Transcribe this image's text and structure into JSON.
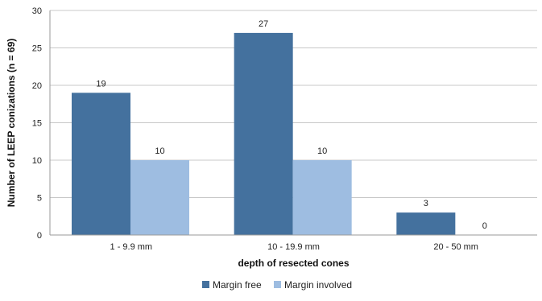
{
  "chart_data": {
    "type": "bar",
    "categories": [
      "1 - 9.9 mm",
      "10 - 19.9 mm",
      "20 - 50 mm"
    ],
    "series": [
      {
        "name": "Margin free",
        "values": [
          19,
          27,
          3
        ],
        "color": "#44719e"
      },
      {
        "name": "Margin involved",
        "values": [
          10,
          10,
          0
        ],
        "color": "#9ebde1"
      }
    ],
    "xlabel": "depth of resected cones",
    "ylabel": "Number of LEEP conizations (n = 69)",
    "ylim": [
      0,
      30
    ],
    "yticks": [
      0,
      5,
      10,
      15,
      20,
      25,
      30
    ],
    "grid": true,
    "legend_position": "bottom-center"
  }
}
